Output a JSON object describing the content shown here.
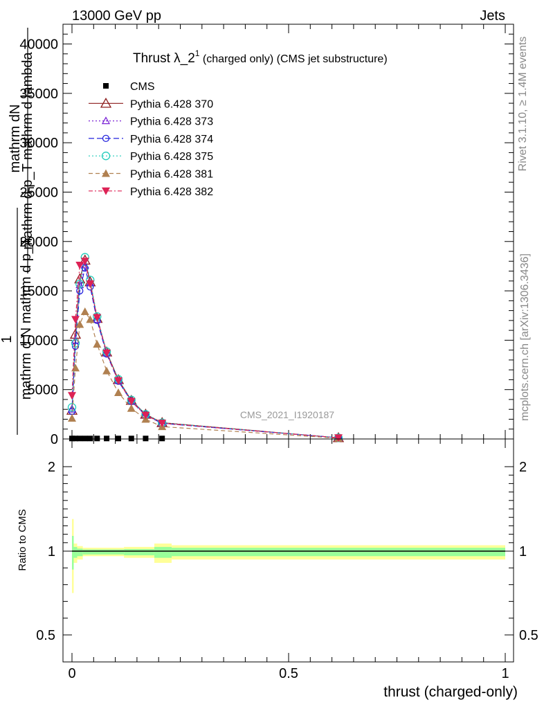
{
  "header": {
    "left": "13000 GeV pp",
    "right": "Jets"
  },
  "side": {
    "rivet": "Rivet 3.1.10, ≥ 1.4M events",
    "mcplots": "mcplots.cern.ch [arXiv:1306.3436]"
  },
  "colors": {
    "cms": "#000000",
    "p370": "#8b1a1a",
    "p373": "#7b24d6",
    "p374": "#2222dd",
    "p375": "#22ccbb",
    "p381": "#b08050",
    "p382": "#dd2255",
    "band_outer": "#ffff99",
    "band_inner": "#99ff99"
  },
  "chart_data": [
    {
      "type": "line",
      "title": "Thrust λ_2¹ (charged only) (CMS jet substructure)",
      "title_main": "Thrust λ_2",
      "title_sup": "1",
      "title_rest": " (charged only) (CMS jet substructure)",
      "ylabel_lines": [
        "mathrm dN",
        "mathrm d p_T mathrm d lambda",
        "1",
        "mathrm d N mathrm d p_T"
      ],
      "watermark": "CMS_2021_I1920187",
      "xlim": [
        -0.02,
        1.02
      ],
      "ylim": [
        0,
        42000
      ],
      "yticks": [
        0,
        5000,
        10000,
        15000,
        20000,
        25000,
        30000,
        35000,
        40000
      ],
      "ytick_labels": [
        "0",
        "5000",
        "10000",
        "15000",
        "20000",
        "25000",
        "30000",
        "35000",
        "40000"
      ],
      "x": [
        0.0,
        0.008,
        0.018,
        0.03,
        0.042,
        0.058,
        0.08,
        0.107,
        0.137,
        0.17,
        0.208,
        0.615
      ],
      "series": [
        {
          "name": "CMS",
          "marker": "square",
          "dash": "",
          "values": [
            50,
            50,
            50,
            50,
            50,
            50,
            50,
            50,
            50,
            50,
            50,
            0
          ]
        },
        {
          "name": "Pythia 6.428 370",
          "marker": "triangle-open",
          "dash": "",
          "values": [
            2900,
            10600,
            16200,
            18100,
            15900,
            12200,
            8800,
            6000,
            3900,
            2500,
            1650,
            120
          ]
        },
        {
          "name": "Pythia 6.428 373",
          "marker": "triangle-open-small",
          "dash": "2,3",
          "values": [
            3000,
            10000,
            15600,
            17600,
            15800,
            12100,
            8700,
            5900,
            3850,
            2450,
            1600,
            120
          ]
        },
        {
          "name": "Pythia 6.428 374",
          "marker": "circle-open",
          "dash": "8,4",
          "values": [
            2800,
            9400,
            15000,
            17300,
            15400,
            12000,
            8600,
            5850,
            3800,
            2400,
            1580,
            120
          ]
        },
        {
          "name": "Pythia 6.428 375",
          "marker": "circle-open-large",
          "dash": "2,3",
          "values": [
            3200,
            9700,
            15700,
            18400,
            16100,
            12400,
            8850,
            6050,
            3950,
            2500,
            1640,
            120
          ]
        },
        {
          "name": "Pythia 6.428 381",
          "marker": "triangle-filled",
          "dash": "6,4",
          "values": [
            2100,
            7200,
            11600,
            12900,
            12100,
            9600,
            6900,
            4700,
            3100,
            2000,
            1250,
            80
          ]
        },
        {
          "name": "Pythia 6.428 382",
          "marker": "triangle-down-filled",
          "dash": "6,3,2,3",
          "values": [
            4400,
            12100,
            17600,
            18000,
            15700,
            12300,
            8700,
            5900,
            3800,
            2400,
            1600,
            120
          ]
        }
      ]
    },
    {
      "type": "area",
      "ylabel": "Ratio to CMS",
      "xlabel": "thrust (charged-only)",
      "xlim": [
        -0.02,
        1.02
      ],
      "xticks": [
        0,
        0.5,
        1
      ],
      "xtick_labels": [
        "0",
        "0.5",
        "1"
      ],
      "ylim": [
        0.41,
        2.3
      ],
      "yticks": [
        0.5,
        1,
        2
      ],
      "ytick_labels": [
        "0.5",
        "1",
        "2"
      ],
      "bins": [
        {
          "lo": 0.0,
          "hi": 0.004,
          "outer": [
            0.75,
            1.38
          ],
          "inner": [
            0.89,
            1.18
          ]
        },
        {
          "lo": 0.004,
          "hi": 0.012,
          "outer": [
            0.93,
            1.09
          ],
          "inner": [
            0.96,
            1.05
          ]
        },
        {
          "lo": 0.012,
          "hi": 0.025,
          "outer": [
            0.95,
            1.06
          ],
          "inner": [
            0.97,
            1.03
          ]
        },
        {
          "lo": 0.025,
          "hi": 0.12,
          "outer": [
            0.97,
            1.04
          ],
          "inner": [
            0.98,
            1.02
          ]
        },
        {
          "lo": 0.12,
          "hi": 0.19,
          "outer": [
            0.96,
            1.05
          ],
          "inner": [
            0.975,
            1.025
          ]
        },
        {
          "lo": 0.19,
          "hi": 0.23,
          "outer": [
            0.93,
            1.09
          ],
          "inner": [
            0.96,
            1.05
          ]
        },
        {
          "lo": 0.23,
          "hi": 1.0,
          "outer": [
            0.95,
            1.07
          ],
          "inner": [
            0.97,
            1.04
          ]
        }
      ]
    }
  ]
}
